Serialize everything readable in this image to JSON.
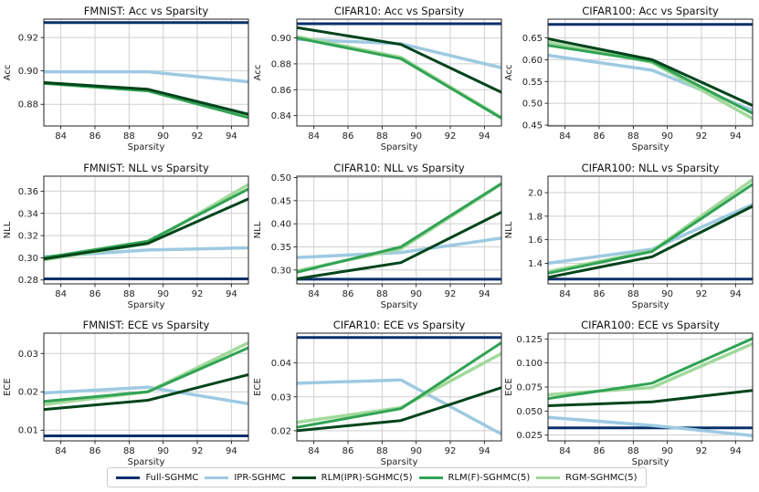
{
  "legend": {
    "placement": "bottom-center",
    "items": [
      {
        "label": "Full-SGHMC",
        "color": "#08306b"
      },
      {
        "label": "IPR-SGHMC",
        "color": "#9ecae1"
      },
      {
        "label": "RLM(IPR)-SGHMC(5)",
        "color": "#00441b"
      },
      {
        "label": "RLM(F)-SGHMC(5)",
        "color": "#31a354"
      },
      {
        "label": "RGM-SGHMC(5)",
        "color": "#a1d99b"
      }
    ]
  },
  "chart_data": [
    {
      "type": "line",
      "title": "FMNIST: Acc vs Sparsity",
      "xlabel": "Sparsity",
      "ylabel": "Acc",
      "x": [
        83,
        89.1,
        95
      ],
      "xlim": [
        83,
        95
      ],
      "xticks": [
        "84",
        "86",
        "88",
        "90",
        "92",
        "94"
      ],
      "xtick_values": [
        84,
        86,
        88,
        90,
        92,
        94
      ],
      "ylim": [
        0.867,
        0.931
      ],
      "yticks": [
        "0.88",
        "0.90",
        "0.92"
      ],
      "ytick_values": [
        0.88,
        0.9,
        0.92
      ],
      "grid": true,
      "series": [
        {
          "name": "Full-SGHMC",
          "values": [
            0.929,
            0.929,
            0.929
          ]
        },
        {
          "name": "IPR-SGHMC",
          "values": [
            0.8995,
            0.8995,
            0.8935
          ]
        },
        {
          "name": "RLM(IPR)-SGHMC(5)",
          "values": [
            0.893,
            0.889,
            0.874
          ]
        },
        {
          "name": "RLM(F)-SGHMC(5)",
          "values": [
            0.8925,
            0.888,
            0.872
          ]
        },
        {
          "name": "RGM-SGHMC(5)",
          "values": [
            0.893,
            0.8885,
            0.8725
          ]
        }
      ]
    },
    {
      "type": "line",
      "title": "CIFAR10: Acc vs Sparsity",
      "xlabel": "Sparsity",
      "ylabel": "Acc",
      "x": [
        83,
        89.1,
        95
      ],
      "xlim": [
        83,
        95
      ],
      "xticks": [
        "84",
        "86",
        "88",
        "90",
        "92",
        "94"
      ],
      "xtick_values": [
        84,
        86,
        88,
        90,
        92,
        94
      ],
      "ylim": [
        0.832,
        0.9145
      ],
      "yticks": [
        "0.84",
        "0.86",
        "0.88",
        "0.90"
      ],
      "ytick_values": [
        0.84,
        0.86,
        0.88,
        0.9
      ],
      "grid": true,
      "series": [
        {
          "name": "Full-SGHMC",
          "values": [
            0.911,
            0.911,
            0.911
          ]
        },
        {
          "name": "IPR-SGHMC",
          "values": [
            0.899,
            0.8955,
            0.877
          ]
        },
        {
          "name": "RLM(IPR)-SGHMC(5)",
          "values": [
            0.908,
            0.895,
            0.858
          ]
        },
        {
          "name": "RLM(F)-SGHMC(5)",
          "values": [
            0.9,
            0.884,
            0.838
          ]
        },
        {
          "name": "RGM-SGHMC(5)",
          "values": [
            0.901,
            0.885,
            0.8385
          ]
        }
      ]
    },
    {
      "type": "line",
      "title": "CIFAR100: Acc vs Sparsity",
      "xlabel": "Sparsity",
      "ylabel": "Acc",
      "x": [
        83,
        89.1,
        95
      ],
      "xlim": [
        83,
        95
      ],
      "xticks": [
        "84",
        "86",
        "88",
        "90",
        "92",
        "94"
      ],
      "xtick_values": [
        84,
        86,
        88,
        90,
        92,
        94
      ],
      "ylim": [
        0.448,
        0.693
      ],
      "yticks": [
        "0.45",
        "0.50",
        "0.55",
        "0.60",
        "0.65"
      ],
      "ytick_values": [
        0.45,
        0.5,
        0.55,
        0.6,
        0.65
      ],
      "grid": true,
      "series": [
        {
          "name": "Full-SGHMC",
          "values": [
            0.681,
            0.681,
            0.681
          ]
        },
        {
          "name": "IPR-SGHMC",
          "values": [
            0.61,
            0.576,
            0.484
          ]
        },
        {
          "name": "RLM(IPR)-SGHMC(5)",
          "values": [
            0.648,
            0.6,
            0.495
          ]
        },
        {
          "name": "RLM(F)-SGHMC(5)",
          "values": [
            0.633,
            0.596,
            0.477
          ]
        },
        {
          "name": "RGM-SGHMC(5)",
          "values": [
            0.64,
            0.594,
            0.465
          ]
        }
      ]
    },
    {
      "type": "line",
      "title": "FMNIST: NLL vs Sparsity",
      "xlabel": "Sparsity",
      "ylabel": "NLL",
      "x": [
        83,
        89.1,
        95
      ],
      "xlim": [
        83,
        95
      ],
      "xticks": [
        "84",
        "86",
        "88",
        "90",
        "92",
        "94"
      ],
      "xtick_values": [
        84,
        86,
        88,
        90,
        92,
        94
      ],
      "ylim": [
        0.2765,
        0.3735
      ],
      "yticks": [
        "0.28",
        "0.30",
        "0.32",
        "0.34",
        "0.36"
      ],
      "ytick_values": [
        0.28,
        0.3,
        0.32,
        0.34,
        0.36
      ],
      "grid": true,
      "series": [
        {
          "name": "Full-SGHMC",
          "values": [
            0.281,
            0.281,
            0.281
          ]
        },
        {
          "name": "IPR-SGHMC",
          "values": [
            0.301,
            0.307,
            0.309
          ]
        },
        {
          "name": "RLM(IPR)-SGHMC(5)",
          "values": [
            0.299,
            0.313,
            0.353
          ]
        },
        {
          "name": "RLM(F)-SGHMC(5)",
          "values": [
            0.3,
            0.315,
            0.362
          ]
        },
        {
          "name": "RGM-SGHMC(5)",
          "values": [
            0.298,
            0.313,
            0.366
          ]
        }
      ]
    },
    {
      "type": "line",
      "title": "CIFAR10: NLL vs Sparsity",
      "xlabel": "Sparsity",
      "ylabel": "NLL",
      "x": [
        83,
        89.1,
        95
      ],
      "xlim": [
        83,
        95
      ],
      "xticks": [
        "84",
        "86",
        "88",
        "90",
        "92",
        "94"
      ],
      "xtick_values": [
        84,
        86,
        88,
        90,
        92,
        94
      ],
      "ylim": [
        0.27,
        0.503
      ],
      "yticks": [
        "0.30",
        "0.35",
        "0.40",
        "0.45",
        "0.50"
      ],
      "ytick_values": [
        0.3,
        0.35,
        0.4,
        0.45,
        0.5
      ],
      "grid": true,
      "series": [
        {
          "name": "Full-SGHMC",
          "values": [
            0.28,
            0.28,
            0.28
          ]
        },
        {
          "name": "IPR-SGHMC",
          "values": [
            0.327,
            0.338,
            0.369
          ]
        },
        {
          "name": "RLM(IPR)-SGHMC(5)",
          "values": [
            0.281,
            0.316,
            0.425
          ]
        },
        {
          "name": "RLM(F)-SGHMC(5)",
          "values": [
            0.295,
            0.35,
            0.487
          ]
        },
        {
          "name": "RGM-SGHMC(5)",
          "values": [
            0.298,
            0.346,
            0.486
          ]
        }
      ]
    },
    {
      "type": "line",
      "title": "CIFAR100: NLL vs Sparsity",
      "xlabel": "Sparsity",
      "ylabel": "NLL",
      "x": [
        83,
        89.1,
        95
      ],
      "xlim": [
        83,
        95
      ],
      "xticks": [
        "84",
        "86",
        "88",
        "90",
        "92",
        "94"
      ],
      "xtick_values": [
        84,
        86,
        88,
        90,
        92,
        94
      ],
      "ylim": [
        1.225,
        2.14
      ],
      "yticks": [
        "1.4",
        "1.6",
        "1.8",
        "2.0"
      ],
      "ytick_values": [
        1.4,
        1.6,
        1.8,
        2.0
      ],
      "grid": true,
      "series": [
        {
          "name": "Full-SGHMC",
          "values": [
            1.265,
            1.265,
            1.265
          ]
        },
        {
          "name": "IPR-SGHMC",
          "values": [
            1.4,
            1.52,
            1.9
          ]
        },
        {
          "name": "RLM(IPR)-SGHMC(5)",
          "values": [
            1.28,
            1.455,
            1.885
          ]
        },
        {
          "name": "RLM(F)-SGHMC(5)",
          "values": [
            1.315,
            1.5,
            2.07
          ]
        },
        {
          "name": "RGM-SGHMC(5)",
          "values": [
            1.33,
            1.505,
            2.11
          ]
        }
      ]
    },
    {
      "type": "line",
      "title": "FMNIST: ECE vs Sparsity",
      "xlabel": "Sparsity",
      "ylabel": "ECE",
      "x": [
        83,
        89.1,
        95
      ],
      "xlim": [
        83,
        95
      ],
      "xticks": [
        "84",
        "86",
        "88",
        "90",
        "92",
        "94"
      ],
      "xtick_values": [
        84,
        86,
        88,
        90,
        92,
        94
      ],
      "ylim": [
        0.0072,
        0.0353
      ],
      "yticks": [
        "0.01",
        "0.02",
        "0.03"
      ],
      "ytick_values": [
        0.01,
        0.02,
        0.03
      ],
      "grid": true,
      "series": [
        {
          "name": "Full-SGHMC",
          "values": [
            0.0085,
            0.0085,
            0.0085
          ]
        },
        {
          "name": "IPR-SGHMC",
          "values": [
            0.0197,
            0.0212,
            0.0169
          ]
        },
        {
          "name": "RLM(IPR)-SGHMC(5)",
          "values": [
            0.0154,
            0.0178,
            0.0245
          ]
        },
        {
          "name": "RLM(F)-SGHMC(5)",
          "values": [
            0.0175,
            0.02,
            0.0315
          ]
        },
        {
          "name": "RGM-SGHMC(5)",
          "values": [
            0.0167,
            0.02,
            0.0328
          ]
        }
      ]
    },
    {
      "type": "line",
      "title": "CIFAR10: ECE vs Sparsity",
      "xlabel": "Sparsity",
      "ylabel": "ECE",
      "x": [
        83,
        89.1,
        95
      ],
      "xlim": [
        83,
        95
      ],
      "xticks": [
        "84",
        "86",
        "88",
        "90",
        "92",
        "94"
      ],
      "xtick_values": [
        84,
        86,
        88,
        90,
        92,
        94
      ],
      "ylim": [
        0.017,
        0.0488
      ],
      "yticks": [
        "0.02",
        "0.03",
        "0.04"
      ],
      "ytick_values": [
        0.02,
        0.03,
        0.04
      ],
      "grid": true,
      "series": [
        {
          "name": "Full-SGHMC",
          "values": [
            0.0475,
            0.0475,
            0.0475
          ]
        },
        {
          "name": "IPR-SGHMC",
          "values": [
            0.034,
            0.035,
            0.019
          ]
        },
        {
          "name": "RLM(IPR)-SGHMC(5)",
          "values": [
            0.02,
            0.023,
            0.0327
          ]
        },
        {
          "name": "RLM(F)-SGHMC(5)",
          "values": [
            0.021,
            0.0265,
            0.046
          ]
        },
        {
          "name": "RGM-SGHMC(5)",
          "values": [
            0.0225,
            0.0268,
            0.0428
          ]
        }
      ]
    },
    {
      "type": "line",
      "title": "CIFAR100: ECE vs Sparsity",
      "xlabel": "Sparsity",
      "ylabel": "ECE",
      "x": [
        83,
        89.1,
        95
      ],
      "xlim": [
        83,
        95
      ],
      "xticks": [
        "84",
        "86",
        "88",
        "90",
        "92",
        "94"
      ],
      "xtick_values": [
        84,
        86,
        88,
        90,
        92,
        94
      ],
      "ylim": [
        0.019,
        0.131
      ],
      "yticks": [
        "0.025",
        "0.050",
        "0.075",
        "0.100",
        "0.125"
      ],
      "ytick_values": [
        0.025,
        0.05,
        0.075,
        0.1,
        0.125
      ],
      "grid": true,
      "series": [
        {
          "name": "Full-SGHMC",
          "values": [
            0.0325,
            0.0325,
            0.0325
          ]
        },
        {
          "name": "IPR-SGHMC",
          "values": [
            0.0435,
            0.035,
            0.0245
          ]
        },
        {
          "name": "RLM(IPR)-SGHMC(5)",
          "values": [
            0.0555,
            0.0595,
            0.0715
          ]
        },
        {
          "name": "RLM(F)-SGHMC(5)",
          "values": [
            0.063,
            0.079,
            0.1255
          ]
        },
        {
          "name": "RGM-SGHMC(5)",
          "values": [
            0.067,
            0.0745,
            0.12
          ]
        }
      ]
    }
  ]
}
